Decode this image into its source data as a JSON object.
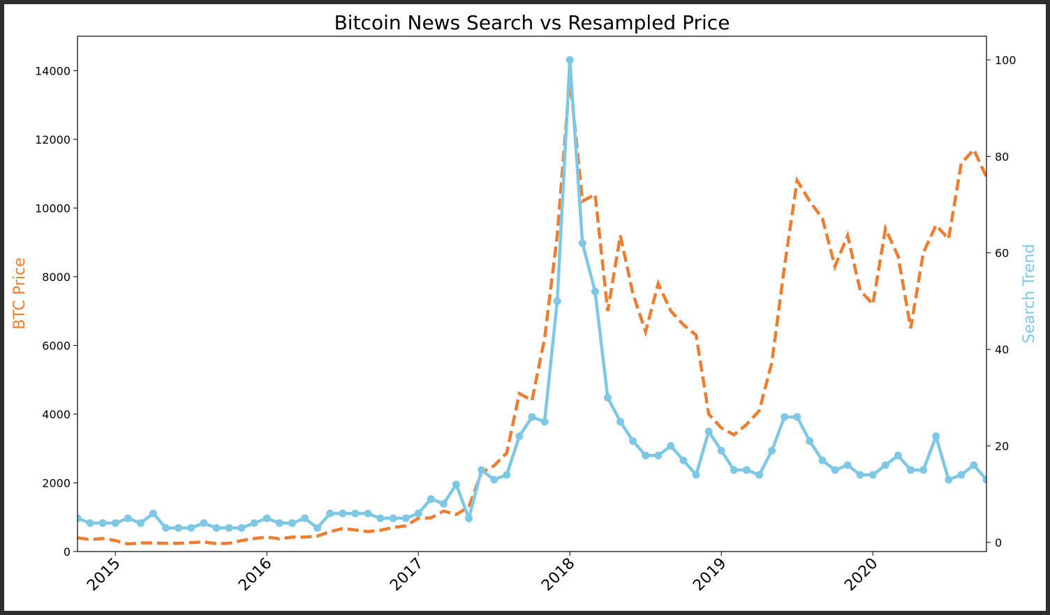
{
  "chart_data": {
    "type": "line",
    "title": "Bitcoin News Search vs Resampled Price",
    "xlabel": "",
    "x_start": "2014-10",
    "x_frequency": "monthly",
    "x_tick_labels": [
      "2015",
      "2016",
      "2017",
      "2018",
      "2019",
      "2020"
    ],
    "x_tick_month_index": [
      3,
      15,
      27,
      39,
      51,
      63
    ],
    "left_axis": {
      "label": "BTC Price",
      "ylim": [
        0,
        15000
      ],
      "ticks": [
        "0",
        "2000",
        "4000",
        "6000",
        "8000",
        "10000",
        "12000",
        "14000"
      ],
      "tick_values": [
        0,
        2000,
        4000,
        6000,
        8000,
        10000,
        12000,
        14000
      ],
      "color": "#ed7d31"
    },
    "right_axis": {
      "label": "Search Trend",
      "ylim": [
        -1.9,
        104.9
      ],
      "ticks": [
        "0",
        "20",
        "40",
        "60",
        "80",
        "100"
      ],
      "tick_values": [
        0,
        20,
        40,
        60,
        80,
        100
      ],
      "color": "#7ec8e6"
    },
    "grid": false,
    "series": [
      {
        "name": "BTC Price",
        "axis": "left",
        "style": "dashed",
        "color": "#ed7d31",
        "values": [
          400,
          350,
          380,
          320,
          220,
          250,
          250,
          240,
          240,
          260,
          280,
          230,
          240,
          320,
          380,
          420,
          370,
          420,
          420,
          450,
          580,
          670,
          630,
          580,
          620,
          700,
          750,
          970,
          980,
          1180,
          1080,
          1300,
          2300,
          2500,
          2870,
          4600,
          4400,
          6200,
          9200,
          13800,
          10200,
          10400,
          7000,
          9200,
          7500,
          6400,
          7800,
          7000,
          6600,
          6300,
          4000,
          3600,
          3400,
          3700,
          4100,
          5500,
          8300,
          10800,
          10200,
          9700,
          8300,
          9200,
          7600,
          7200,
          9400,
          8600,
          6500,
          8700,
          9500,
          9100,
          11300,
          11700,
          10900
        ]
      },
      {
        "name": "Search Trend",
        "axis": "right",
        "style": "solid-markers",
        "color": "#7ec8e6",
        "values": [
          5,
          4,
          4,
          4,
          5,
          4,
          6,
          3,
          3,
          3,
          4,
          3,
          3,
          3,
          4,
          5,
          4,
          4,
          5,
          3,
          6,
          6,
          6,
          6,
          5,
          5,
          5,
          6,
          9,
          8,
          12,
          5,
          15,
          13,
          14,
          22,
          26,
          25,
          50,
          100,
          62,
          52,
          30,
          25,
          21,
          18,
          18,
          20,
          17,
          14,
          23,
          19,
          15,
          15,
          14,
          19,
          26,
          26,
          21,
          17,
          15,
          16,
          14,
          14,
          16,
          18,
          15,
          15,
          22,
          13,
          14,
          16,
          13
        ]
      }
    ]
  }
}
